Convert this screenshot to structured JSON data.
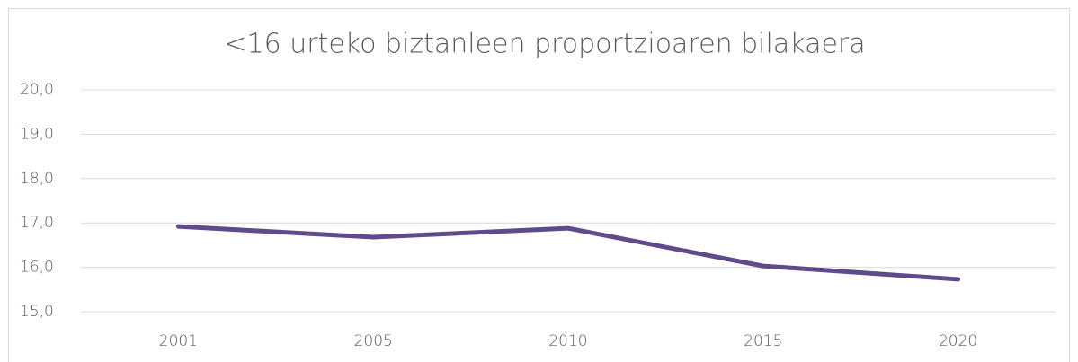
{
  "chart_data": {
    "type": "line",
    "title": "<16 urteko biztanleen proportzioaren bilakaera",
    "categories": [
      "2001",
      "2005",
      "2010",
      "2015",
      "2020"
    ],
    "series": [
      {
        "name": "<16",
        "color": "#5f4b8b",
        "values": [
          16.92,
          16.68,
          16.88,
          16.03,
          15.73
        ]
      }
    ],
    "ylim": [
      15,
      20
    ],
    "yticks": [
      {
        "value": 15,
        "label": "15,0"
      },
      {
        "value": 16,
        "label": "16,0"
      },
      {
        "value": 17,
        "label": "17,0"
      },
      {
        "value": 18,
        "label": "18,0"
      },
      {
        "value": 19,
        "label": "19,0"
      },
      {
        "value": 20,
        "label": "20,0"
      }
    ],
    "grid": true
  }
}
